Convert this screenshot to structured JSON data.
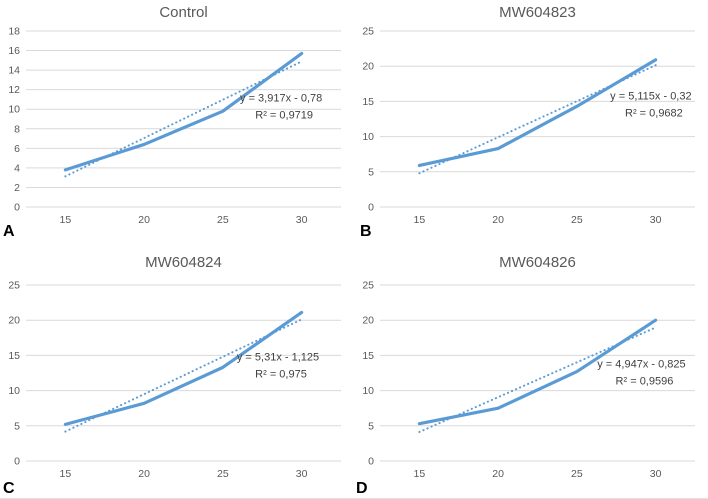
{
  "figure": {
    "background": "#ffffff",
    "colors": {
      "line": "#5b9bd5",
      "trendline": "#5b9bd5",
      "gridline": "#d9d9d9",
      "axis_text": "#595959",
      "title_text": "#595959",
      "equation_text": "#3f3f3f",
      "panel_letter": "#000000"
    }
  },
  "chart_data": {
    "type": "line",
    "layout": "2x2-grid",
    "x_categories": [
      "15",
      "20",
      "25",
      "30"
    ],
    "grid": "horizontal-only",
    "legend": "none",
    "panels": [
      {
        "label": "A",
        "title": "Control",
        "values": [
          3.8,
          6.4,
          9.8,
          15.7
        ],
        "ylim": [
          0,
          18
        ],
        "ytick_step": 2,
        "trendline": {
          "slope": 3.917,
          "intercept": -0.78,
          "style": "dotted-linear"
        },
        "equation_label": "y = 3,917x - 0,78",
        "r2_label": "R² = 0,9719",
        "annotation_pos": {
          "x_frac": 0.81,
          "y_frac": 0.4
        }
      },
      {
        "label": "B",
        "title": "MW604823",
        "values": [
          5.9,
          8.3,
          14.3,
          20.9
        ],
        "ylim": [
          0,
          25
        ],
        "ytick_step": 5,
        "trendline": {
          "slope": 5.115,
          "intercept": -0.32,
          "style": "dotted-linear"
        },
        "equation_label": "y = 5,115x - 0,32",
        "r2_label": "R² = 0,9682",
        "annotation_pos": {
          "x_frac": 0.86,
          "y_frac": 0.39
        }
      },
      {
        "label": "C",
        "title": "MW604824",
        "values": [
          5.2,
          8.2,
          13.3,
          21.1
        ],
        "ylim": [
          0,
          25
        ],
        "ytick_step": 5,
        "trendline": {
          "slope": 5.31,
          "intercept": -1.125,
          "style": "dotted-linear"
        },
        "equation_label": "y = 5,31x - 1,125",
        "r2_label": "R² = 0,975",
        "annotation_pos": {
          "x_frac": 0.8,
          "y_frac": 0.43
        }
      },
      {
        "label": "D",
        "title": "MW604826",
        "values": [
          5.3,
          7.5,
          12.7,
          20.0
        ],
        "ylim": [
          0,
          25
        ],
        "ytick_step": 5,
        "trendline": {
          "slope": 4.947,
          "intercept": -0.825,
          "style": "dotted-linear"
        },
        "equation_label": "y = 4,947x - 0,825",
        "r2_label": "R² = 0,9596",
        "annotation_pos": {
          "x_frac": 0.83,
          "y_frac": 0.47
        }
      }
    ]
  }
}
